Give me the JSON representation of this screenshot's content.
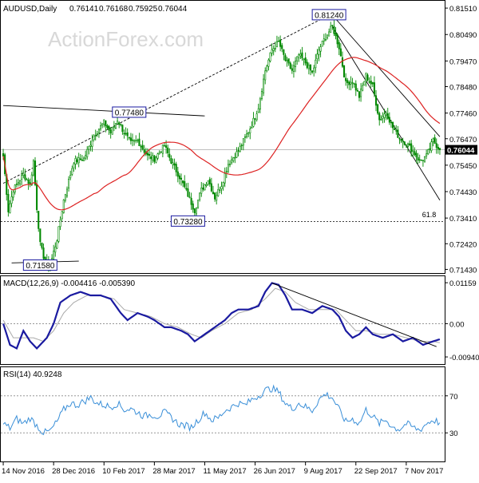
{
  "header": {
    "symbol_label": "AUDUSD,Daily",
    "ohlc": [
      "0.76141",
      "0.76168",
      "0.75925",
      "0.76044"
    ]
  },
  "watermark": "ActionForex.com",
  "colors": {
    "background": "#ffffff",
    "candle": "#008800",
    "sma": "#dd2222",
    "macd_line": "#1a1aa0",
    "signal_line": "#aaaaaa",
    "rsi_line": "#3a8fd8",
    "trendline": "#000000",
    "label_box_border": "#1a1aa0",
    "last_price_bg": "#000000",
    "last_price_fg": "#ffffff"
  },
  "chart_data": [
    {
      "type": "candlestick",
      "panel": "price",
      "y_axis_ticks": [
        "0.81510",
        "0.80490",
        "0.79470",
        "0.78480",
        "0.77460",
        "0.76470",
        "0.75450",
        "0.74430",
        "0.73410",
        "0.72420",
        "0.71430"
      ],
      "y_axis_values": [
        0.8151,
        0.8049,
        0.7947,
        0.7848,
        0.7746,
        0.7647,
        0.7545,
        0.7443,
        0.7341,
        0.7242,
        0.7143
      ],
      "ylim": [
        0.7132,
        0.8176
      ],
      "x_axis_ticks": [
        "14 Nov 2016",
        "28 Dec 2016",
        "10 Feb 2017",
        "28 Mar 2017",
        "11 May 2017",
        "26 Jun 2017",
        "9 Aug 2017",
        "22 Sep 2017",
        "7 Nov 2017"
      ],
      "x_tick_bar_index": [
        0,
        30,
        60,
        90,
        120,
        150,
        180,
        210,
        240
      ],
      "last_price": "0.76044",
      "last_price_value": 0.76044,
      "bar_count": 261,
      "close_anchors": [
        [
          0,
          0.758
        ],
        [
          3,
          0.737
        ],
        [
          6,
          0.745
        ],
        [
          12,
          0.751
        ],
        [
          16,
          0.747
        ],
        [
          18,
          0.756
        ],
        [
          20,
          0.738
        ],
        [
          22,
          0.724
        ],
        [
          25,
          0.717
        ],
        [
          28,
          0.716
        ],
        [
          32,
          0.726
        ],
        [
          36,
          0.741
        ],
        [
          42,
          0.756
        ],
        [
          48,
          0.757
        ],
        [
          54,
          0.766
        ],
        [
          60,
          0.771
        ],
        [
          64,
          0.767
        ],
        [
          68,
          0.772
        ],
        [
          72,
          0.767
        ],
        [
          76,
          0.763
        ],
        [
          80,
          0.764
        ],
        [
          86,
          0.758
        ],
        [
          90,
          0.757
        ],
        [
          96,
          0.762
        ],
        [
          100,
          0.756
        ],
        [
          105,
          0.75
        ],
        [
          110,
          0.743
        ],
        [
          114,
          0.737
        ],
        [
          118,
          0.745
        ],
        [
          122,
          0.749
        ],
        [
          126,
          0.742
        ],
        [
          130,
          0.747
        ],
        [
          134,
          0.755
        ],
        [
          140,
          0.76
        ],
        [
          144,
          0.765
        ],
        [
          148,
          0.77
        ],
        [
          152,
          0.777
        ],
        [
          156,
          0.791
        ],
        [
          160,
          0.799
        ],
        [
          164,
          0.802
        ],
        [
          168,
          0.795
        ],
        [
          172,
          0.791
        ],
        [
          176,
          0.797
        ],
        [
          180,
          0.794
        ],
        [
          184,
          0.79
        ],
        [
          188,
          0.799
        ],
        [
          192,
          0.804
        ],
        [
          196,
          0.808
        ],
        [
          200,
          0.8
        ],
        [
          204,
          0.786
        ],
        [
          208,
          0.787
        ],
        [
          212,
          0.781
        ],
        [
          216,
          0.789
        ],
        [
          220,
          0.785
        ],
        [
          224,
          0.772
        ],
        [
          228,
          0.775
        ],
        [
          232,
          0.769
        ],
        [
          236,
          0.765
        ],
        [
          240,
          0.763
        ],
        [
          244,
          0.76
        ],
        [
          248,
          0.756
        ],
        [
          252,
          0.758
        ],
        [
          256,
          0.764
        ],
        [
          260,
          0.76044
        ]
      ],
      "annotations": [
        {
          "label": "0.81240",
          "bar": 194,
          "value": 0.8124
        },
        {
          "label": "0.77480",
          "bar": 75,
          "value": 0.7748
        },
        {
          "label": "0.73280",
          "bar": 110,
          "value": 0.7328
        },
        {
          "label": "0.71580",
          "bar": 22,
          "value": 0.7158
        },
        {
          "label": "61.8",
          "bar": 258,
          "value": 0.7338
        }
      ],
      "fib_level": {
        "label": "61.8",
        "value": 0.7328
      },
      "horizontal_levels": [
        0.7328,
        0.76044
      ],
      "trendlines": [
        {
          "from": [
            0,
            0.7775
          ],
          "to": [
            120,
            0.7735
          ]
        },
        {
          "from": [
            0,
            0.7475
          ],
          "to": [
            194,
            0.8124
          ]
        },
        {
          "from": [
            196,
            0.8124
          ],
          "to": [
            260,
            0.7655
          ]
        },
        {
          "from": [
            196,
            0.808
          ],
          "to": [
            260,
            0.741
          ]
        },
        {
          "from": [
            5,
            0.7168
          ],
          "to": [
            45,
            0.7175
          ]
        }
      ]
    },
    {
      "type": "line",
      "panel": "macd",
      "label": "MACD(12,26,9) -0.004416 -0.005390",
      "y_axis_ticks": [
        "0.01159",
        "0.00",
        "-0.009408"
      ],
      "y_axis_values": [
        0.01159,
        0.0,
        -0.009408
      ],
      "ylim": [
        -0.0112,
        0.0132
      ],
      "series": [
        {
          "name": "MACD",
          "anchors": [
            [
              0,
              0.0
            ],
            [
              4,
              -0.006
            ],
            [
              8,
              -0.007
            ],
            [
              12,
              -0.002
            ],
            [
              16,
              -0.005
            ],
            [
              20,
              -0.007
            ],
            [
              26,
              -0.004
            ],
            [
              30,
              0.0
            ],
            [
              34,
              0.006
            ],
            [
              40,
              0.008
            ],
            [
              46,
              0.009
            ],
            [
              52,
              0.008
            ],
            [
              58,
              0.008
            ],
            [
              64,
              0.007
            ],
            [
              70,
              0.003
            ],
            [
              74,
              0.001
            ],
            [
              80,
              0.003
            ],
            [
              86,
              0.002
            ],
            [
              90,
              0.001
            ],
            [
              96,
              -0.001
            ],
            [
              100,
              -0.001
            ],
            [
              106,
              -0.002
            ],
            [
              110,
              -0.003
            ],
            [
              114,
              -0.005
            ],
            [
              120,
              -0.003
            ],
            [
              126,
              -0.001
            ],
            [
              132,
              0.001
            ],
            [
              136,
              0.003
            ],
            [
              140,
              0.004
            ],
            [
              146,
              0.004
            ],
            [
              152,
              0.005
            ],
            [
              156,
              0.009
            ],
            [
              160,
              0.0115
            ],
            [
              164,
              0.011
            ],
            [
              168,
              0.008
            ],
            [
              172,
              0.004
            ],
            [
              178,
              0.004
            ],
            [
              184,
              0.003
            ],
            [
              190,
              0.005
            ],
            [
              196,
              0.004
            ],
            [
              200,
              0.002
            ],
            [
              204,
              -0.002
            ],
            [
              208,
              -0.004
            ],
            [
              212,
              -0.003
            ],
            [
              216,
              -0.001
            ],
            [
              220,
              -0.003
            ],
            [
              226,
              -0.004
            ],
            [
              232,
              -0.003
            ],
            [
              238,
              -0.005
            ],
            [
              244,
              -0.004
            ],
            [
              250,
              -0.006
            ],
            [
              256,
              -0.005
            ],
            [
              260,
              -0.004416
            ]
          ]
        },
        {
          "name": "Signal",
          "anchors": [
            [
              0,
              0.001
            ],
            [
              6,
              -0.004
            ],
            [
              12,
              -0.004
            ],
            [
              18,
              -0.004
            ],
            [
              24,
              -0.005
            ],
            [
              30,
              -0.002
            ],
            [
              36,
              0.003
            ],
            [
              42,
              0.006
            ],
            [
              50,
              0.008
            ],
            [
              58,
              0.008
            ],
            [
              66,
              0.007
            ],
            [
              72,
              0.004
            ],
            [
              80,
              0.003
            ],
            [
              88,
              0.002
            ],
            [
              96,
              0.0
            ],
            [
              104,
              -0.001
            ],
            [
              112,
              -0.003
            ],
            [
              118,
              -0.004
            ],
            [
              124,
              -0.002
            ],
            [
              132,
              0.0
            ],
            [
              140,
              0.003
            ],
            [
              148,
              0.004
            ],
            [
              156,
              0.007
            ],
            [
              162,
              0.01
            ],
            [
              168,
              0.009
            ],
            [
              174,
              0.006
            ],
            [
              182,
              0.004
            ],
            [
              190,
              0.004
            ],
            [
              198,
              0.004
            ],
            [
              204,
              0.001
            ],
            [
              210,
              -0.002
            ],
            [
              216,
              -0.002
            ],
            [
              224,
              -0.003
            ],
            [
              232,
              -0.003
            ],
            [
              240,
              -0.004
            ],
            [
              248,
              -0.005
            ],
            [
              256,
              -0.005
            ],
            [
              260,
              -0.00539
            ]
          ]
        }
      ],
      "trendline": {
        "from": [
          160,
          0.0115
        ],
        "to": [
          258,
          -0.0065
        ]
      }
    },
    {
      "type": "line",
      "panel": "rsi",
      "label": "RSI(14) 40.9248",
      "y_axis_ticks": [
        "70",
        "30"
      ],
      "y_axis_values": [
        70,
        30
      ],
      "ylim": [
        0,
        100
      ],
      "series": [
        {
          "name": "RSI",
          "anchors": [
            [
              0,
              40
            ],
            [
              4,
              35
            ],
            [
              8,
              45
            ],
            [
              12,
              40
            ],
            [
              16,
              46
            ],
            [
              20,
              38
            ],
            [
              24,
              30
            ],
            [
              28,
              32
            ],
            [
              32,
              42
            ],
            [
              36,
              55
            ],
            [
              40,
              62
            ],
            [
              44,
              60
            ],
            [
              48,
              64
            ],
            [
              52,
              68
            ],
            [
              56,
              62
            ],
            [
              60,
              60
            ],
            [
              64,
              58
            ],
            [
              68,
              62
            ],
            [
              72,
              55
            ],
            [
              76,
              56
            ],
            [
              80,
              52
            ],
            [
              84,
              48
            ],
            [
              88,
              50
            ],
            [
              92,
              48
            ],
            [
              96,
              52
            ],
            [
              100,
              47
            ],
            [
              104,
              40
            ],
            [
              108,
              38
            ],
            [
              112,
              36
            ],
            [
              116,
              44
            ],
            [
              120,
              52
            ],
            [
              124,
              44
            ],
            [
              128,
              46
            ],
            [
              132,
              54
            ],
            [
              136,
              58
            ],
            [
              140,
              62
            ],
            [
              144,
              60
            ],
            [
              148,
              66
            ],
            [
              152,
              70
            ],
            [
              156,
              76
            ],
            [
              160,
              78
            ],
            [
              164,
              74
            ],
            [
              168,
              62
            ],
            [
              172,
              56
            ],
            [
              176,
              62
            ],
            [
              180,
              58
            ],
            [
              184,
              54
            ],
            [
              188,
              66
            ],
            [
              192,
              72
            ],
            [
              196,
              68
            ],
            [
              200,
              55
            ],
            [
              204,
              42
            ],
            [
              208,
              45
            ],
            [
              212,
              40
            ],
            [
              216,
              55
            ],
            [
              220,
              48
            ],
            [
              224,
              40
            ],
            [
              228,
              44
            ],
            [
              232,
              36
            ],
            [
              236,
              34
            ],
            [
              240,
              40
            ],
            [
              244,
              36
            ],
            [
              248,
              33
            ],
            [
              252,
              40
            ],
            [
              256,
              44
            ],
            [
              260,
              40.9248
            ]
          ]
        }
      ]
    }
  ]
}
